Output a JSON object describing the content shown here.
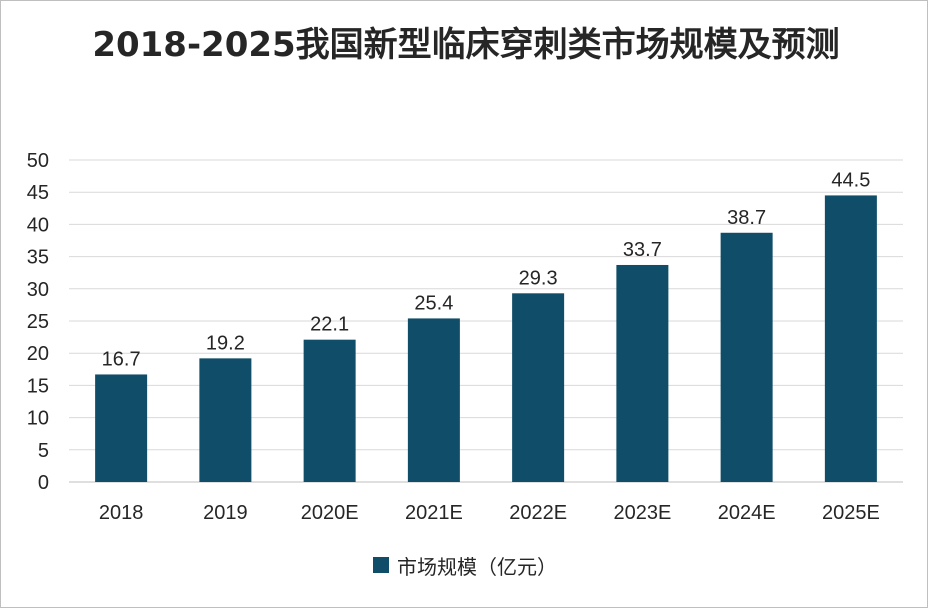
{
  "chart_data": {
    "type": "bar",
    "title": "2018-2025我国新型临床穿刺类市场规模及预测",
    "categories": [
      "2018",
      "2019",
      "2020E",
      "2021E",
      "2022E",
      "2023E",
      "2024E",
      "2025E"
    ],
    "series": [
      {
        "name": "市场规模（亿元）",
        "values": [
          16.7,
          19.2,
          22.1,
          25.4,
          29.3,
          33.7,
          38.7,
          44.5
        ],
        "labels": [
          "16.7",
          "19.2",
          "22.1",
          "25.4",
          "29.3",
          "33.7",
          "38.7",
          "44.5"
        ]
      }
    ],
    "ylim": [
      0,
      50
    ],
    "yticks": [
      0,
      5,
      10,
      15,
      20,
      25,
      30,
      35,
      40,
      45,
      50
    ],
    "grid": true,
    "legend": "bottom",
    "colors": {
      "bar": "#0f4d68"
    }
  }
}
